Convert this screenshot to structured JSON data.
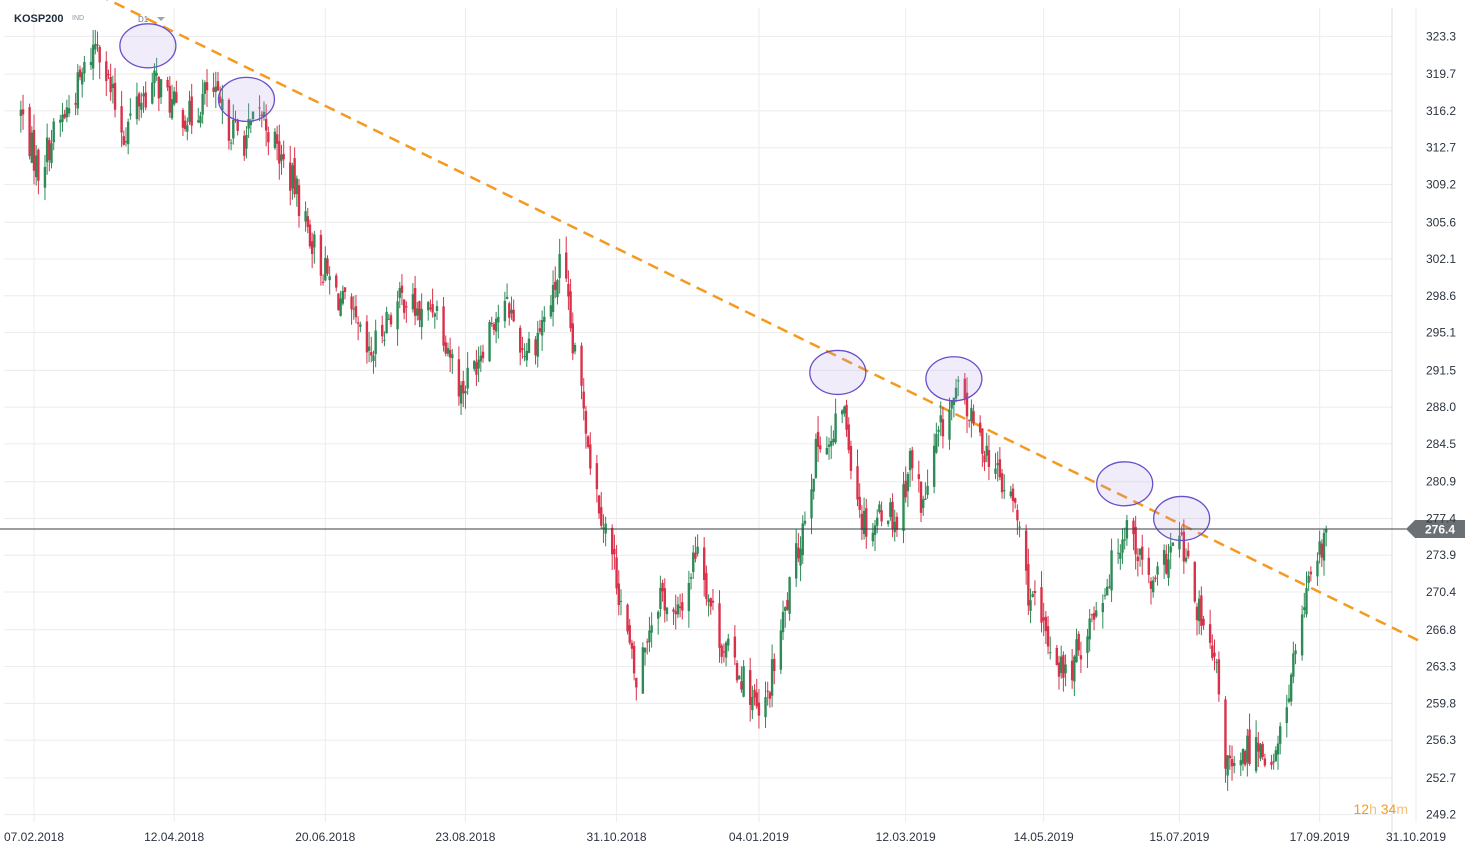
{
  "header": {
    "symbol": "KOSP200",
    "instrument_type": "IND",
    "timeframe": "D1"
  },
  "countdown": {
    "hours": "12",
    "hours_unit": "h",
    "minutes": "34",
    "minutes_unit": "m"
  },
  "colors": {
    "up": "#2e8b57",
    "down": "#d9314a",
    "trendline": "#f59a1f",
    "highlight_ring": "#6a4fc9",
    "price_line": "#3a3f45",
    "price_tag_bg": "#6b7075",
    "grid": "#ececec"
  },
  "chart_data": {
    "type": "candlestick",
    "ylim": [
      248.5,
      326.0
    ],
    "y_ticks": [
      "323.3",
      "319.7",
      "316.2",
      "312.7",
      "309.2",
      "305.6",
      "302.1",
      "298.6",
      "295.1",
      "291.5",
      "288.0",
      "284.5",
      "280.9",
      "277.4",
      "273.9",
      "270.4",
      "266.8",
      "263.3",
      "259.8",
      "256.3",
      "252.7",
      "249.2"
    ],
    "x_ticks": [
      "07.02.2018",
      "12.04.2018",
      "20.06.2018",
      "23.08.2018",
      "31.10.2018",
      "04.01.2019",
      "12.03.2019",
      "14.05.2019",
      "15.07.2019",
      "17.09.2019",
      "31.10.2019"
    ],
    "current_price": "276.4",
    "current_price_value": 276.4,
    "trendline": {
      "from": [
        "2018-03-01",
        328.0
      ],
      "to": [
        "2019-11-01",
        265.8
      ],
      "style": "dashed"
    },
    "highlighted_touches": [
      {
        "date": "2018-03-31",
        "price": 322.4
      },
      {
        "date": "2018-05-15",
        "price": 317.3
      },
      {
        "date": "2019-02-09",
        "price": 291.3
      },
      {
        "date": "2019-04-03",
        "price": 290.7
      },
      {
        "date": "2019-06-20",
        "price": 280.7
      },
      {
        "date": "2019-07-16",
        "price": 277.4
      }
    ],
    "path": [
      [
        "2018-02-01",
        316.0
      ],
      [
        "2018-02-09",
        310.5
      ],
      [
        "2018-02-16",
        314.0
      ],
      [
        "2018-02-24",
        317.0
      ],
      [
        "2018-03-02",
        320.0
      ],
      [
        "2018-03-08",
        323.3
      ],
      [
        "2018-03-14",
        318.0
      ],
      [
        "2018-03-20",
        314.0
      ],
      [
        "2018-03-26",
        317.0
      ],
      [
        "2018-04-04",
        319.0
      ],
      [
        "2018-04-12",
        316.5
      ],
      [
        "2018-04-20",
        315.5
      ],
      [
        "2018-04-28",
        318.5
      ],
      [
        "2018-05-06",
        315.0
      ],
      [
        "2018-05-14",
        313.5
      ],
      [
        "2018-05-22",
        316.0
      ],
      [
        "2018-05-30",
        312.0
      ],
      [
        "2018-06-06",
        309.0
      ],
      [
        "2018-06-12",
        305.0
      ],
      [
        "2018-06-18",
        301.5
      ],
      [
        "2018-06-26",
        298.5
      ],
      [
        "2018-07-04",
        295.5
      ],
      [
        "2018-07-10",
        292.5
      ],
      [
        "2018-07-18",
        296.5
      ],
      [
        "2018-07-26",
        298.5
      ],
      [
        "2018-08-03",
        296.5
      ],
      [
        "2018-08-09",
        298.0
      ],
      [
        "2018-08-15",
        294.0
      ],
      [
        "2018-08-21",
        289.5
      ],
      [
        "2018-08-27",
        292.0
      ],
      [
        "2018-09-04",
        296.5
      ],
      [
        "2018-09-12",
        297.5
      ],
      [
        "2018-09-18",
        293.5
      ],
      [
        "2018-09-24",
        294.5
      ],
      [
        "2018-10-02",
        298.5
      ],
      [
        "2018-10-06",
        302.5
      ],
      [
        "2018-10-11",
        293.5
      ],
      [
        "2018-10-16",
        288.5
      ],
      [
        "2018-10-20",
        281.5
      ],
      [
        "2018-10-26",
        276.5
      ],
      [
        "2018-10-30",
        273.0
      ],
      [
        "2018-11-05",
        266.0
      ],
      [
        "2018-11-09",
        261.5
      ],
      [
        "2018-11-14",
        266.5
      ],
      [
        "2018-11-20",
        270.5
      ],
      [
        "2018-11-27",
        267.5
      ],
      [
        "2018-12-03",
        271.5
      ],
      [
        "2018-12-07",
        275.5
      ],
      [
        "2018-12-12",
        270.0
      ],
      [
        "2018-12-18",
        265.5
      ],
      [
        "2018-12-24",
        263.5
      ],
      [
        "2018-12-30",
        261.5
      ],
      [
        "2019-01-05",
        257.5
      ],
      [
        "2019-01-11",
        263.5
      ],
      [
        "2019-01-17",
        269.5
      ],
      [
        "2019-01-22",
        274.5
      ],
      [
        "2019-01-27",
        280.5
      ],
      [
        "2019-02-01",
        285.5
      ],
      [
        "2019-02-06",
        284.0
      ],
      [
        "2019-02-11",
        288.5
      ],
      [
        "2019-02-15",
        283.5
      ],
      [
        "2019-02-20",
        277.5
      ],
      [
        "2019-02-25",
        276.5
      ],
      [
        "2019-03-02",
        279.0
      ],
      [
        "2019-03-08",
        277.0
      ],
      [
        "2019-03-14",
        283.0
      ],
      [
        "2019-03-20",
        278.5
      ],
      [
        "2019-03-26",
        284.5
      ],
      [
        "2019-03-31",
        287.5
      ],
      [
        "2019-04-06",
        289.5
      ],
      [
        "2019-04-12",
        286.0
      ],
      [
        "2019-04-19",
        283.5
      ],
      [
        "2019-04-25",
        280.5
      ],
      [
        "2019-05-01",
        278.5
      ],
      [
        "2019-05-07",
        270.5
      ],
      [
        "2019-05-13",
        267.0
      ],
      [
        "2019-05-19",
        264.5
      ],
      [
        "2019-05-25",
        262.0
      ],
      [
        "2019-05-31",
        265.5
      ],
      [
        "2019-06-06",
        268.5
      ],
      [
        "2019-06-12",
        271.5
      ],
      [
        "2019-06-18",
        275.5
      ],
      [
        "2019-06-22",
        277.5
      ],
      [
        "2019-06-27",
        273.5
      ],
      [
        "2019-07-03",
        270.5
      ],
      [
        "2019-07-09",
        273.5
      ],
      [
        "2019-07-15",
        275.5
      ],
      [
        "2019-07-20",
        271.5
      ],
      [
        "2019-07-26",
        266.5
      ],
      [
        "2019-08-01",
        262.5
      ],
      [
        "2019-08-05",
        254.5
      ],
      [
        "2019-08-10",
        252.5
      ],
      [
        "2019-08-15",
        255.5
      ],
      [
        "2019-08-21",
        256.0
      ],
      [
        "2019-08-27",
        253.5
      ],
      [
        "2019-09-01",
        259.0
      ],
      [
        "2019-09-05",
        263.5
      ],
      [
        "2019-09-09",
        268.5
      ],
      [
        "2019-09-13",
        271.0
      ],
      [
        "2019-09-18",
        274.5
      ],
      [
        "2019-09-20",
        276.4
      ]
    ],
    "x_date_range": [
      "2018-02-07",
      "2019-10-31"
    ]
  }
}
